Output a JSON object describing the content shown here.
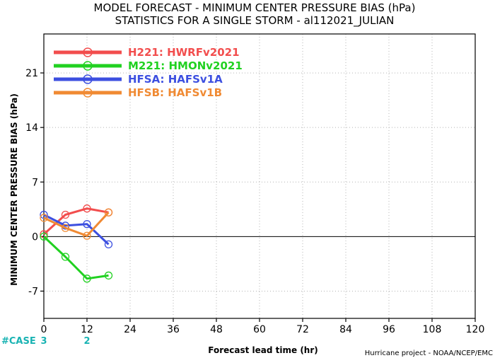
{
  "title_line1": "MODEL FORECAST - MINIMUM CENTER PRESSURE BIAS (hPa)",
  "title_line2": "STATISTICS FOR A SINGLE STORM - al112021_JULIAN",
  "credit": "Hurricane project - NOAA/NCEP/EMC",
  "case_label": "#CASE",
  "case_counts": [
    {
      "x": 0,
      "label": "3"
    },
    {
      "x": 12,
      "label": "2"
    }
  ],
  "colors": {
    "case": "#19b3b3",
    "zero_line": "#000000",
    "grid": "#b4b4b4"
  },
  "chart_data": {
    "type": "line",
    "title": "MODEL FORECAST - MINIMUM CENTER PRESSURE BIAS (hPa)",
    "subtitle": "STATISTICS FOR A SINGLE STORM - al112021_JULIAN",
    "xlabel": "Forecast lead time (hr)",
    "ylabel": "MINIMUM CENTER PRESSURE BIAS (hPa)",
    "xlim": [
      0,
      120
    ],
    "ylim": [
      -10.5,
      26
    ],
    "xticks": [
      0,
      12,
      24,
      36,
      48,
      60,
      72,
      84,
      96,
      108,
      120
    ],
    "yticks": [
      -7,
      0,
      7,
      14,
      21
    ],
    "grid": true,
    "legend_position": "top-left",
    "series": [
      {
        "name": "H221: HWRFv2021",
        "color": "#f24d4d",
        "x": [
          0,
          6,
          12,
          18
        ],
        "values": [
          0.3,
          2.8,
          3.6,
          3.1
        ]
      },
      {
        "name": "M221: HMONv2021",
        "color": "#21d121",
        "x": [
          0,
          6,
          12,
          18
        ],
        "values": [
          0.0,
          -2.6,
          -5.4,
          -5.0
        ]
      },
      {
        "name": "HFSA: HAFSv1A",
        "color": "#3c4fe0",
        "x": [
          0,
          6,
          12,
          18
        ],
        "values": [
          2.8,
          1.4,
          1.6,
          -1.0
        ]
      },
      {
        "name": "HFSB: HAFSv1B",
        "color": "#f08a33",
        "x": [
          0,
          6,
          12,
          18
        ],
        "values": [
          2.4,
          1.1,
          0.1,
          3.1
        ]
      }
    ]
  }
}
